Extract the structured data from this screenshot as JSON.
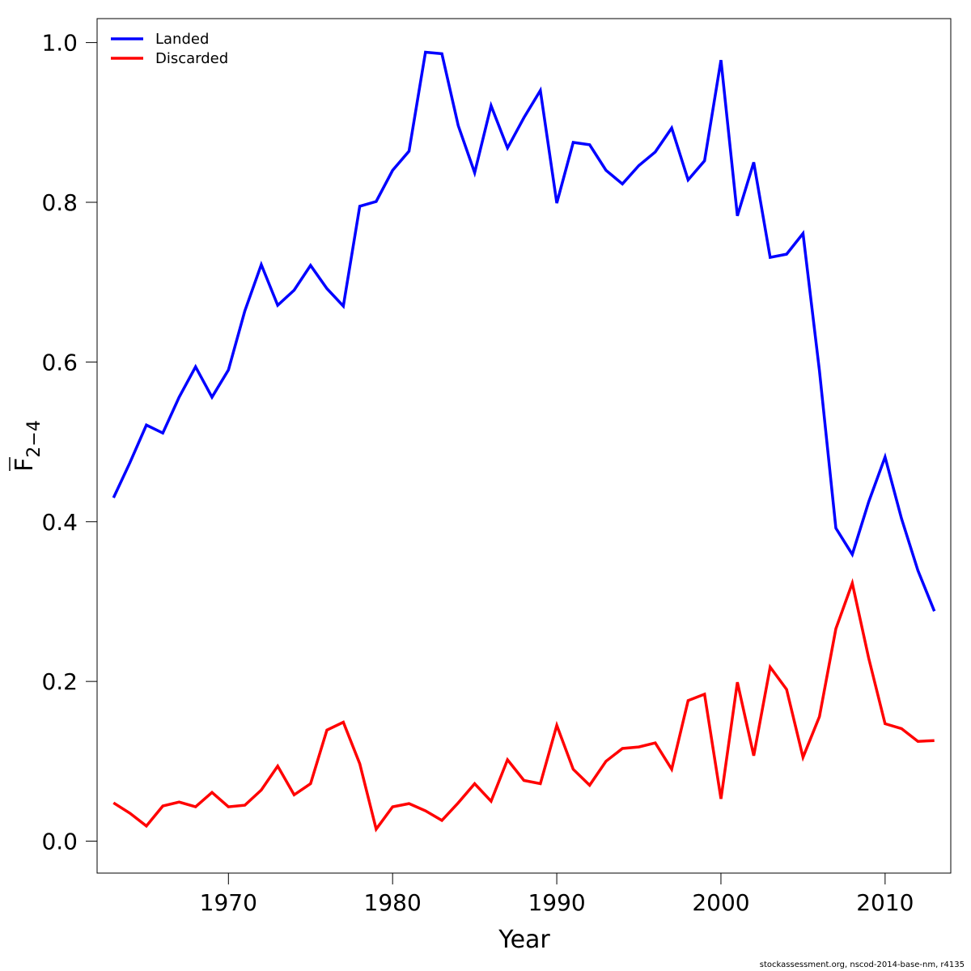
{
  "chart_data": {
    "type": "line",
    "title": "",
    "xlabel": "Year",
    "ylabel_main": "F",
    "ylabel_sub": "2−4",
    "xlim": [
      1962,
      2014
    ],
    "ylim": [
      -0.04,
      1.03
    ],
    "x_ticks": [
      1970,
      1980,
      1990,
      2000,
      2010
    ],
    "y_ticks": [
      0.0,
      0.2,
      0.4,
      0.6,
      0.8,
      1.0
    ],
    "x_tick_labels": [
      "1970",
      "1980",
      "1990",
      "2000",
      "2010"
    ],
    "y_tick_labels": [
      "0.0",
      "0.2",
      "0.4",
      "0.6",
      "0.8",
      "1.0"
    ],
    "grid": false,
    "legend_position": "top-left",
    "x": [
      1963,
      1964,
      1965,
      1966,
      1967,
      1968,
      1969,
      1970,
      1971,
      1972,
      1973,
      1974,
      1975,
      1976,
      1977,
      1978,
      1979,
      1980,
      1981,
      1982,
      1983,
      1984,
      1985,
      1986,
      1987,
      1988,
      1989,
      1990,
      1991,
      1992,
      1993,
      1994,
      1995,
      1996,
      1997,
      1998,
      1999,
      2000,
      2001,
      2002,
      2003,
      2004,
      2005,
      2006,
      2007,
      2008,
      2009,
      2010,
      2011,
      2012,
      2013
    ],
    "series": [
      {
        "name": "Landed",
        "color": "#0000FF",
        "values": [
          0.43,
          0.474,
          0.521,
          0.511,
          0.556,
          0.594,
          0.556,
          0.59,
          0.664,
          0.722,
          0.671,
          0.69,
          0.721,
          0.692,
          0.67,
          0.795,
          0.801,
          0.84,
          0.864,
          0.988,
          0.986,
          0.896,
          0.837,
          0.921,
          0.868,
          0.906,
          0.94,
          0.799,
          0.875,
          0.872,
          0.84,
          0.823,
          0.846,
          0.863,
          0.893,
          0.828,
          0.852,
          0.978,
          0.783,
          0.85,
          0.731,
          0.735,
          0.761,
          0.589,
          0.392,
          0.359,
          0.425,
          0.481,
          0.404,
          0.339,
          0.288
        ]
      },
      {
        "name": "Discarded",
        "color": "#FF0000",
        "values": [
          0.048,
          0.035,
          0.019,
          0.044,
          0.049,
          0.043,
          0.061,
          0.043,
          0.045,
          0.064,
          0.094,
          0.058,
          0.072,
          0.139,
          0.149,
          0.097,
          0.015,
          0.043,
          0.047,
          0.038,
          0.026,
          0.048,
          0.072,
          0.05,
          0.102,
          0.076,
          0.072,
          0.145,
          0.09,
          0.07,
          0.1,
          0.116,
          0.118,
          0.123,
          0.09,
          0.176,
          0.184,
          0.053,
          0.199,
          0.107,
          0.218,
          0.19,
          0.105,
          0.156,
          0.266,
          0.323,
          0.229,
          0.147,
          0.141,
          0.125,
          0.126
        ]
      }
    ]
  },
  "footer": {
    "credit": "stockassessment.org, nscod-2014-base-nm, r4135"
  }
}
